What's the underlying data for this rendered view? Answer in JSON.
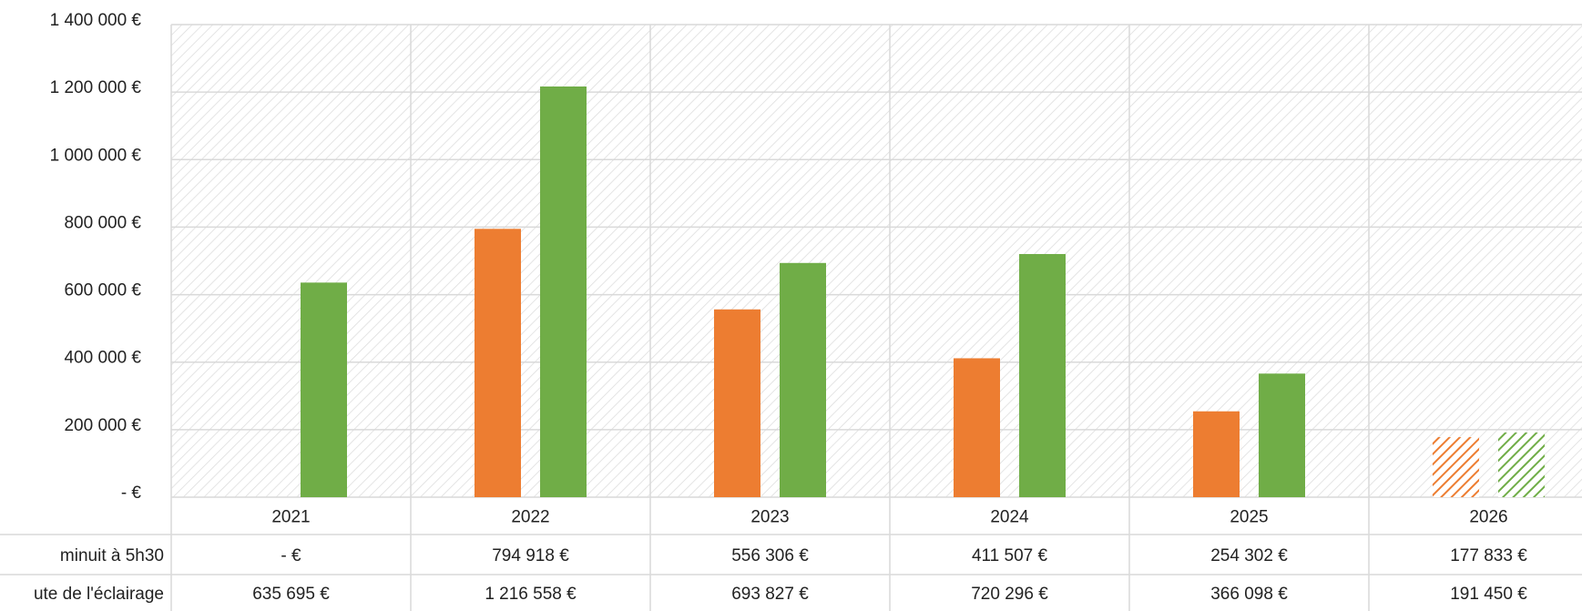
{
  "chart_data": {
    "type": "bar",
    "categories": [
      "2021",
      "2022",
      "2023",
      "2024",
      "2025",
      "2026"
    ],
    "series": [
      {
        "name": "minuit à 5h30",
        "color": "#ed7d31",
        "values": [
          0,
          794918,
          556306,
          411507,
          254302,
          177833
        ],
        "value_labels": [
          "- €",
          "794 918 €",
          "556 306 €",
          "411 507 €",
          "254 302 €",
          "177 833 €"
        ]
      },
      {
        "name": "ute de l'éclairage",
        "color": "#70ad47",
        "values": [
          635695,
          1216558,
          693827,
          720296,
          366098,
          191450
        ],
        "value_labels": [
          "635 695 €",
          "1 216 558 €",
          "693 827 €",
          "720 296 €",
          "366 098 €",
          "191 450 €"
        ]
      }
    ],
    "hatched": [
      false,
      false,
      false,
      false,
      false,
      true
    ],
    "ylim": [
      0,
      1400000
    ],
    "yticks": [
      {
        "value": 0,
        "label": "- €"
      },
      {
        "value": 200000,
        "label": "200 000 €"
      },
      {
        "value": 400000,
        "label": "400 000 €"
      },
      {
        "value": 600000,
        "label": "600 000 €"
      },
      {
        "value": 800000,
        "label": "800 000 €"
      },
      {
        "value": 1000000,
        "label": "1 000 000 €"
      },
      {
        "value": 1200000,
        "label": "1 200 000 €"
      },
      {
        "value": 1400000,
        "label": "1 400 000 €"
      }
    ],
    "grid": true
  }
}
